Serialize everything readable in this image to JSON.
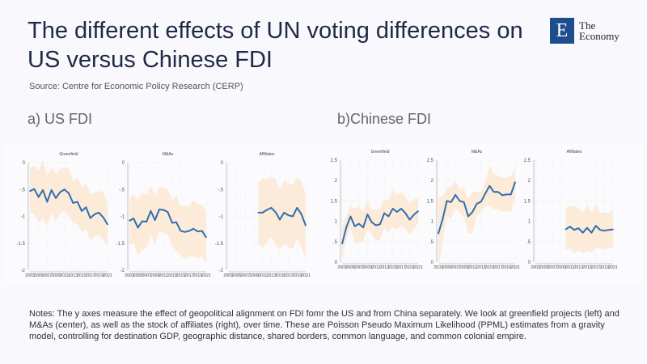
{
  "title": "The different effects of UN voting differences on US versus Chinese FDI",
  "source": "Source: Centre for Economic Policy Research (CERP)",
  "logo": {
    "letter": "E",
    "line1": "The",
    "line2": "Economy"
  },
  "sections": {
    "a": "a) US FDI",
    "b": "b)Chinese FDI"
  },
  "notes": "Notes: The y axes measure the effect of geopolitical alignment on FDI fomr the US and from China separately. We look at greenfield projects (left) and M&As (center), as well as the stock of affiliates (right), over time. These are Poisson Pseudo Maximum Likelihood (PPML) estimates from a gravity model, controlling for destination GDP, geographic distance, shared borders, common language, and common colonial empire.",
  "colors": {
    "line": "#2f6fae",
    "band": "#fde9d6"
  },
  "chart_data": [
    {
      "type": "line",
      "group": "a) US FDI",
      "title": "Greenfield",
      "ylim": [
        -2,
        0
      ],
      "yticks": [
        0,
        -0.5,
        -1,
        -1.5,
        -2
      ],
      "ytick_labels": [
        "0",
        "-.5",
        "-1",
        "-1.5",
        "-2"
      ],
      "x": [
        2003,
        2004,
        2005,
        2006,
        2007,
        2008,
        2009,
        2010,
        2011,
        2012,
        2013,
        2014,
        2015,
        2016,
        2017,
        2018,
        2019,
        2020,
        2021
      ],
      "xtick_labels": [
        "2003",
        "2005",
        "2007",
        "2009",
        "2011",
        "2013",
        "2015",
        "2017",
        "2019",
        "2021"
      ],
      "y": [
        -0.53,
        -0.49,
        -0.64,
        -0.51,
        -0.73,
        -0.51,
        -0.66,
        -0.55,
        -0.5,
        -0.57,
        -0.75,
        -0.73,
        -0.9,
        -0.83,
        -1.03,
        -0.96,
        -0.93,
        -1.02,
        -1.15
      ],
      "upper": [
        -0.12,
        -0.05,
        -0.15,
        0.05,
        -0.25,
        -0.08,
        -0.22,
        -0.12,
        -0.08,
        -0.12,
        -0.35,
        -0.28,
        -0.45,
        -0.38,
        -0.58,
        -0.55,
        -0.52,
        -0.55,
        -0.78
      ],
      "lower": [
        -0.92,
        -0.95,
        -1.12,
        -1.05,
        -1.18,
        -0.95,
        -1.08,
        -0.95,
        -0.9,
        -1.0,
        -1.12,
        -1.15,
        -1.28,
        -1.25,
        -1.45,
        -1.38,
        -1.35,
        -1.45,
        -1.55
      ]
    },
    {
      "type": "line",
      "group": "a) US FDI",
      "title": "M&As",
      "ylim": [
        -2,
        0
      ],
      "yticks": [
        0,
        -0.5,
        -1,
        -1.5,
        -2
      ],
      "ytick_labels": [
        "0",
        "-.5",
        "-1",
        "-1.5",
        "-2"
      ],
      "x": [
        2003,
        2004,
        2005,
        2006,
        2007,
        2008,
        2009,
        2010,
        2011,
        2012,
        2013,
        2014,
        2015,
        2016,
        2017,
        2018,
        2019,
        2020,
        2021
      ],
      "xtick_labels": [
        "2003",
        "2005",
        "2007",
        "2009",
        "2011",
        "2013",
        "2015",
        "2017",
        "2019",
        "2021"
      ],
      "y": [
        -1.08,
        -1.04,
        -1.21,
        -1.09,
        -1.1,
        -0.9,
        -1.07,
        -0.87,
        -0.88,
        -0.92,
        -1.12,
        -1.11,
        -1.27,
        -1.29,
        -1.27,
        -1.23,
        -1.28,
        -1.27,
        -1.39
      ],
      "upper": [
        -0.65,
        -0.58,
        -0.7,
        -0.55,
        -0.62,
        -0.42,
        -0.62,
        -0.45,
        -0.47,
        -0.5,
        -0.7,
        -0.6,
        -0.82,
        -0.8,
        -0.8,
        -0.7,
        -0.77,
        -0.78,
        -0.92
      ],
      "lower": [
        -1.52,
        -1.5,
        -1.73,
        -1.62,
        -1.58,
        -1.35,
        -1.52,
        -1.28,
        -1.3,
        -1.35,
        -1.55,
        -1.65,
        -1.72,
        -1.8,
        -1.75,
        -1.75,
        -1.78,
        -1.75,
        -1.88
      ]
    },
    {
      "type": "line",
      "group": "a) US FDI",
      "title": "Affiliates",
      "ylim": [
        -2,
        0
      ],
      "yticks": [
        0,
        -0.5,
        -1,
        -1.5,
        -2
      ],
      "ytick_labels": [
        "0",
        "-.5",
        "-1",
        "-1.5",
        "-2"
      ],
      "x": [
        2010,
        2011,
        2012,
        2013,
        2014,
        2015,
        2016,
        2017,
        2018,
        2019,
        2020,
        2021
      ],
      "xtick_labels": [
        "2003",
        "2005",
        "2007",
        "2009",
        "2011",
        "2013",
        "2015",
        "2017",
        "2019",
        "2021"
      ],
      "y": [
        -0.93,
        -0.93,
        -0.88,
        -0.84,
        -0.92,
        -1.06,
        -0.93,
        -0.98,
        -1.0,
        -0.84,
        -0.96,
        -1.17
      ],
      "upper": [
        -0.37,
        -0.3,
        -0.3,
        -0.28,
        -0.3,
        -0.5,
        -0.33,
        -0.4,
        -0.4,
        -0.28,
        -0.35,
        -0.58
      ],
      "lower": [
        -1.5,
        -1.58,
        -1.48,
        -1.38,
        -1.52,
        -1.62,
        -1.52,
        -1.57,
        -1.6,
        -1.4,
        -1.58,
        -1.78
      ]
    },
    {
      "type": "line",
      "group": "b)Chinese FDI",
      "title": "Greenfield",
      "ylim": [
        0,
        2.5
      ],
      "yticks": [
        0,
        0.5,
        1,
        1.5,
        2,
        2.5
      ],
      "ytick_labels": [
        "0",
        ".5",
        "1",
        "1.5",
        "2",
        "2.5"
      ],
      "x": [
        2003,
        2004,
        2005,
        2006,
        2007,
        2008,
        2009,
        2010,
        2011,
        2012,
        2013,
        2014,
        2015,
        2016,
        2017,
        2018,
        2019,
        2020,
        2021
      ],
      "xtick_labels": [
        "2003",
        "2005",
        "2007",
        "2009",
        "2011",
        "2013",
        "2015",
        "2017",
        "2019",
        "2021"
      ],
      "y": [
        0.45,
        0.85,
        1.12,
        0.88,
        0.94,
        0.85,
        1.17,
        0.98,
        0.9,
        0.93,
        1.2,
        1.12,
        1.31,
        1.23,
        1.31,
        1.2,
        1.04,
        1.16,
        1.25
      ],
      "upper": [
        0.85,
        1.15,
        1.38,
        1.3,
        1.38,
        1.22,
        1.52,
        1.3,
        1.28,
        1.3,
        1.55,
        1.52,
        1.78,
        1.65,
        1.72,
        1.6,
        1.42,
        1.55,
        1.56
      ],
      "lower": [
        0.05,
        0.55,
        0.85,
        0.45,
        0.5,
        0.5,
        0.82,
        0.68,
        0.52,
        0.55,
        0.85,
        0.72,
        0.85,
        0.8,
        0.9,
        0.8,
        0.67,
        0.8,
        0.95
      ]
    },
    {
      "type": "line",
      "group": "b)Chinese FDI",
      "title": "M&As",
      "ylim": [
        0,
        2.5
      ],
      "yticks": [
        0,
        0.5,
        1,
        1.5,
        2,
        2.5
      ],
      "ytick_labels": [
        "0",
        ".5",
        "1",
        "1.5",
        "2",
        "2.5"
      ],
      "x": [
        2003,
        2004,
        2005,
        2006,
        2007,
        2008,
        2009,
        2010,
        2011,
        2012,
        2013,
        2014,
        2015,
        2016,
        2017,
        2018,
        2019,
        2020,
        2021
      ],
      "xtick_labels": [
        "2003",
        "2005",
        "2007",
        "2009",
        "2011",
        "2013",
        "2015",
        "2017",
        "2019",
        "2021"
      ],
      "y": [
        0.7,
        1.05,
        1.5,
        1.47,
        1.65,
        1.5,
        1.47,
        1.12,
        1.23,
        1.43,
        1.48,
        1.68,
        1.87,
        1.72,
        1.72,
        1.64,
        1.66,
        1.66,
        1.96
      ],
      "upper": [
        1.6,
        1.62,
        1.82,
        1.85,
        1.98,
        1.78,
        1.82,
        1.55,
        1.72,
        1.72,
        1.72,
        1.98,
        2.38,
        2.15,
        2.12,
        2.08,
        2.08,
        2.12,
        2.3
      ],
      "lower": [
        -0.2,
        0.45,
        1.15,
        1.05,
        1.32,
        1.2,
        1.1,
        0.7,
        0.72,
        1.15,
        1.22,
        1.38,
        1.38,
        1.28,
        1.32,
        1.22,
        1.25,
        1.22,
        1.6
      ]
    },
    {
      "type": "line",
      "group": "b)Chinese FDI",
      "title": "Affiliates",
      "ylim": [
        0,
        2.5
      ],
      "yticks": [
        0,
        0.5,
        1,
        1.5,
        2,
        2.5
      ],
      "ytick_labels": [
        "0",
        ".5",
        "1",
        "1.5",
        "2",
        "2.5"
      ],
      "x": [
        2010,
        2011,
        2012,
        2013,
        2014,
        2015,
        2016,
        2017,
        2018,
        2019,
        2020,
        2021
      ],
      "xtick_labels": [
        "2003",
        "2005",
        "2007",
        "2009",
        "2011",
        "2013",
        "2015",
        "2017",
        "2019",
        "2021"
      ],
      "y": [
        0.8,
        0.87,
        0.79,
        0.83,
        0.72,
        0.84,
        0.72,
        0.89,
        0.79,
        0.77,
        0.79,
        0.8
      ],
      "upper": [
        1.33,
        1.38,
        1.38,
        1.32,
        1.22,
        1.38,
        1.2,
        1.42,
        1.2,
        1.22,
        1.2,
        1.27
      ],
      "lower": [
        0.28,
        0.35,
        0.2,
        0.3,
        0.22,
        0.28,
        0.22,
        0.35,
        0.35,
        0.3,
        0.35,
        0.36
      ]
    }
  ]
}
